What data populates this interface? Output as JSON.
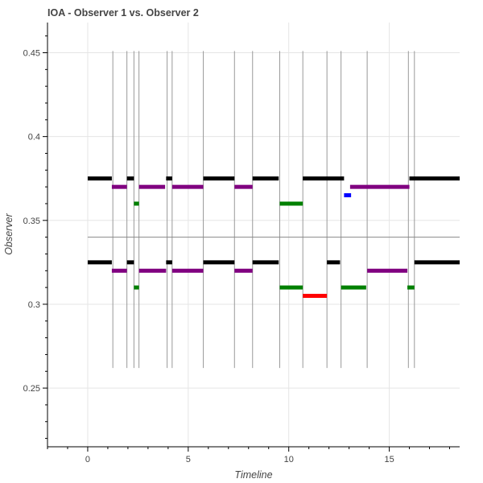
{
  "chart_data": {
    "type": "gantt",
    "title": "IOA - Observer 1 vs. Observer 2",
    "xlabel": "Timeline",
    "ylabel": "Observer",
    "xlim": [
      -2,
      18.5
    ],
    "ylim": [
      0.215,
      0.468
    ],
    "x_ticks": [
      0,
      5,
      10,
      15
    ],
    "x_tick_labels": [
      "0",
      "5",
      "10",
      "15"
    ],
    "y_ticks": [
      0.25,
      0.3,
      0.35,
      0.4,
      0.45
    ],
    "y_tick_labels": [
      "0.25",
      "0.3",
      "0.35",
      "0.4",
      "0.45"
    ],
    "grid": true,
    "colors": {
      "black": "#000000",
      "purple": "#800080",
      "green": "#008000",
      "blue": "#0000ff",
      "red": "#ff0000",
      "vline": "#999999",
      "separator": "#888888"
    },
    "separator_y": 0.34,
    "vlines": {
      "x": [
        1.25,
        1.95,
        2.3,
        2.55,
        3.95,
        4.2,
        5.75,
        7.3,
        8.2,
        9.55,
        10.7,
        11.9,
        12.6,
        13.9,
        15.95,
        16.25
      ],
      "y_range": [
        0.262,
        0.451
      ]
    },
    "segments": [
      {
        "x0": 0,
        "x1": 1.2,
        "y": 0.375,
        "color": "black"
      },
      {
        "x0": 1.95,
        "x1": 2.3,
        "y": 0.375,
        "color": "black"
      },
      {
        "x0": 3.9,
        "x1": 4.2,
        "y": 0.375,
        "color": "black"
      },
      {
        "x0": 5.75,
        "x1": 7.3,
        "y": 0.375,
        "color": "black"
      },
      {
        "x0": 8.2,
        "x1": 9.5,
        "y": 0.375,
        "color": "black"
      },
      {
        "x0": 10.7,
        "x1": 12.75,
        "y": 0.375,
        "color": "black"
      },
      {
        "x0": 16.0,
        "x1": 18.5,
        "y": 0.375,
        "color": "black"
      },
      {
        "x0": 1.2,
        "x1": 1.95,
        "y": 0.37,
        "color": "purple"
      },
      {
        "x0": 2.55,
        "x1": 3.85,
        "y": 0.37,
        "color": "purple"
      },
      {
        "x0": 4.2,
        "x1": 5.75,
        "y": 0.37,
        "color": "purple"
      },
      {
        "x0": 7.3,
        "x1": 8.2,
        "y": 0.37,
        "color": "purple"
      },
      {
        "x0": 13.05,
        "x1": 16.0,
        "y": 0.37,
        "color": "purple"
      },
      {
        "x0": 12.75,
        "x1": 13.1,
        "y": 0.365,
        "color": "blue"
      },
      {
        "x0": 2.3,
        "x1": 2.55,
        "y": 0.36,
        "color": "green"
      },
      {
        "x0": 9.55,
        "x1": 10.7,
        "y": 0.36,
        "color": "green"
      },
      {
        "x0": 0,
        "x1": 1.2,
        "y": 0.325,
        "color": "black"
      },
      {
        "x0": 1.95,
        "x1": 2.3,
        "y": 0.325,
        "color": "black"
      },
      {
        "x0": 3.9,
        "x1": 4.2,
        "y": 0.325,
        "color": "black"
      },
      {
        "x0": 5.75,
        "x1": 7.3,
        "y": 0.325,
        "color": "black"
      },
      {
        "x0": 8.2,
        "x1": 9.5,
        "y": 0.325,
        "color": "black"
      },
      {
        "x0": 11.9,
        "x1": 12.55,
        "y": 0.325,
        "color": "black"
      },
      {
        "x0": 16.25,
        "x1": 18.5,
        "y": 0.325,
        "color": "black"
      },
      {
        "x0": 1.2,
        "x1": 1.95,
        "y": 0.32,
        "color": "purple"
      },
      {
        "x0": 2.55,
        "x1": 3.9,
        "y": 0.32,
        "color": "purple"
      },
      {
        "x0": 4.2,
        "x1": 5.75,
        "y": 0.32,
        "color": "purple"
      },
      {
        "x0": 7.3,
        "x1": 8.2,
        "y": 0.32,
        "color": "purple"
      },
      {
        "x0": 13.9,
        "x1": 15.9,
        "y": 0.32,
        "color": "purple"
      },
      {
        "x0": 2.3,
        "x1": 2.55,
        "y": 0.31,
        "color": "green"
      },
      {
        "x0": 9.55,
        "x1": 10.7,
        "y": 0.31,
        "color": "green"
      },
      {
        "x0": 12.6,
        "x1": 13.85,
        "y": 0.31,
        "color": "green"
      },
      {
        "x0": 15.9,
        "x1": 16.25,
        "y": 0.31,
        "color": "green"
      },
      {
        "x0": 10.7,
        "x1": 11.9,
        "y": 0.305,
        "color": "red"
      }
    ]
  }
}
